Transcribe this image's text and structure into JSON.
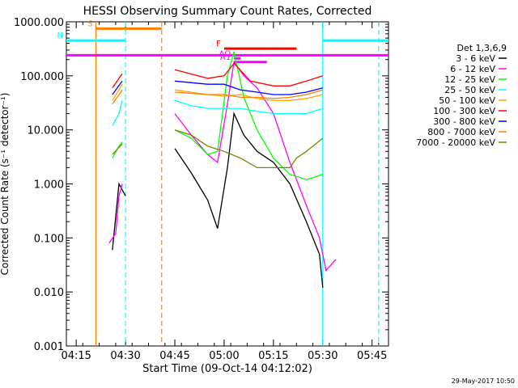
{
  "chart_data": {
    "type": "line",
    "title": "HESSI Observing Summary Count Rates, Corrected",
    "xlabel": "Start Time (09-Oct-14 04:12:02)",
    "ylabel": "Corrected Count Rate (s⁻¹ detector⁻¹)",
    "yscale": "log",
    "ylim": [
      0.001,
      1000
    ],
    "xlim_minutes": [
      "04:12",
      "05:50"
    ],
    "x_ticks": [
      "04:15",
      "04:30",
      "04:45",
      "05:00",
      "05:15",
      "05:30",
      "05:45"
    ],
    "y_ticks": [
      "1000.000",
      "100.000",
      "10.000",
      "1.000",
      "0.100",
      "0.010",
      "0.001"
    ],
    "legend_title": "Det 1,3,6,9",
    "legend_position": "right",
    "series": [
      {
        "name": "3 - 6 keV",
        "color": "#000000",
        "points": [
          [
            "04:26",
            0.06
          ],
          [
            "04:28",
            1.0
          ],
          [
            "04:30",
            0.6
          ],
          [
            "04:45",
            4.5
          ],
          [
            "04:50",
            1.6
          ],
          [
            "04:55",
            0.5
          ],
          [
            "04:58",
            0.15
          ],
          [
            "05:01",
            2.0
          ],
          [
            "05:03",
            20
          ],
          [
            "05:06",
            8.0
          ],
          [
            "05:10",
            4.0
          ],
          [
            "05:15",
            2.5
          ],
          [
            "05:20",
            1.0
          ],
          [
            "05:25",
            0.2
          ],
          [
            "05:29",
            0.05
          ],
          [
            "05:30",
            0.012
          ]
        ]
      },
      {
        "name": "6 - 12 keV",
        "color": "#ff00ff",
        "points": [
          [
            "04:25",
            0.08
          ],
          [
            "04:27",
            0.12
          ],
          [
            "04:28",
            0.6
          ],
          [
            "04:29",
            1.0
          ],
          [
            "04:45",
            20
          ],
          [
            "04:50",
            8.0
          ],
          [
            "04:55",
            3.5
          ],
          [
            "04:58",
            2.5
          ],
          [
            "05:01",
            30
          ],
          [
            "05:03",
            180
          ],
          [
            "05:06",
            100
          ],
          [
            "05:10",
            60
          ],
          [
            "05:15",
            20
          ],
          [
            "05:20",
            2.5
          ],
          [
            "05:25",
            0.4
          ],
          [
            "05:29",
            0.1
          ],
          [
            "05:31",
            0.025
          ],
          [
            "05:34",
            0.04
          ]
        ]
      },
      {
        "name": "12 - 25 keV",
        "color": "#00ff00",
        "points": [
          [
            "04:26",
            3.0
          ],
          [
            "04:28",
            5.0
          ],
          [
            "04:29",
            6.0
          ],
          [
            "04:45",
            10
          ],
          [
            "04:50",
            7.0
          ],
          [
            "04:55",
            3.5
          ],
          [
            "04:58",
            4.0
          ],
          [
            "05:01",
            100
          ],
          [
            "05:03",
            280
          ],
          [
            "05:06",
            40
          ],
          [
            "05:10",
            10
          ],
          [
            "05:15",
            3.0
          ],
          [
            "05:20",
            1.5
          ],
          [
            "05:25",
            1.2
          ],
          [
            "05:30",
            1.5
          ]
        ]
      },
      {
        "name": "25 - 50 keV",
        "color": "#00ffff",
        "points": [
          [
            "04:26",
            12
          ],
          [
            "04:28",
            20
          ],
          [
            "04:29",
            35
          ],
          [
            "04:45",
            35
          ],
          [
            "04:50",
            28
          ],
          [
            "04:55",
            25
          ],
          [
            "05:00",
            25
          ],
          [
            "05:05",
            25
          ],
          [
            "05:10",
            22
          ],
          [
            "05:15",
            20
          ],
          [
            "05:20",
            20
          ],
          [
            "05:25",
            20
          ],
          [
            "05:30",
            25
          ]
        ]
      },
      {
        "name": "50 - 100 keV",
        "color": "#ffa500",
        "points": [
          [
            "04:26",
            35
          ],
          [
            "04:29",
            70
          ],
          [
            "04:45",
            55
          ],
          [
            "04:55",
            45
          ],
          [
            "05:00",
            42
          ],
          [
            "05:05",
            45
          ],
          [
            "05:10",
            38
          ],
          [
            "05:15",
            35
          ],
          [
            "05:20",
            35
          ],
          [
            "05:25",
            38
          ],
          [
            "05:30",
            45
          ]
        ]
      },
      {
        "name": "100 - 300 keV",
        "color": "#ff0000",
        "points": [
          [
            "04:26",
            60
          ],
          [
            "04:29",
            110
          ],
          [
            "04:45",
            130
          ],
          [
            "04:55",
            90
          ],
          [
            "05:00",
            100
          ],
          [
            "05:03",
            170
          ],
          [
            "05:08",
            80
          ],
          [
            "05:15",
            65
          ],
          [
            "05:20",
            65
          ],
          [
            "05:25",
            80
          ],
          [
            "05:30",
            100
          ]
        ]
      },
      {
        "name": "300 - 800 keV",
        "color": "#0000ff",
        "points": [
          [
            "04:26",
            45
          ],
          [
            "04:29",
            80
          ],
          [
            "04:45",
            80
          ],
          [
            "04:55",
            70
          ],
          [
            "05:00",
            70
          ],
          [
            "05:05",
            55
          ],
          [
            "05:10",
            50
          ],
          [
            "05:15",
            45
          ],
          [
            "05:20",
            45
          ],
          [
            "05:25",
            50
          ],
          [
            "05:30",
            60
          ]
        ]
      },
      {
        "name": "800 - 7000 keV",
        "color": "#ff8000",
        "points": [
          [
            "04:26",
            30
          ],
          [
            "04:29",
            55
          ],
          [
            "04:45",
            50
          ],
          [
            "04:55",
            45
          ],
          [
            "05:00",
            45
          ],
          [
            "05:05",
            40
          ],
          [
            "05:10",
            40
          ],
          [
            "05:15",
            38
          ],
          [
            "05:20",
            40
          ],
          [
            "05:25",
            45
          ],
          [
            "05:30",
            55
          ]
        ]
      },
      {
        "name": "7000 - 20000 keV",
        "color": "#808000",
        "points": [
          [
            "04:26",
            3.5
          ],
          [
            "04:29",
            5.5
          ],
          [
            "04:45",
            10
          ],
          [
            "04:50",
            8.0
          ],
          [
            "04:55",
            5.0
          ],
          [
            "05:00",
            4.0
          ],
          [
            "05:05",
            3.0
          ],
          [
            "05:10",
            2.0
          ],
          [
            "05:20",
            2.0
          ],
          [
            "05:22",
            3.0
          ],
          [
            "05:25",
            4.0
          ],
          [
            "05:30",
            7.0
          ]
        ]
      }
    ],
    "flag_bars": [
      {
        "label": "S",
        "color": "#ff8000",
        "start": "04:21",
        "end": "04:41",
        "y": 750
      },
      {
        "label": "N",
        "color": "#00ffff",
        "start": "04:12",
        "end": "04:30",
        "y": 450
      },
      {
        "label": "",
        "color": "#00ffff",
        "start": "05:30",
        "end": "05:50",
        "y": 450
      },
      {
        "label": "F",
        "color": "#ff0000",
        "start": "05:00",
        "end": "05:22",
        "y": 320
      },
      {
        "label": "",
        "color": "#ff00ff",
        "start": "04:12",
        "end": "05:50",
        "y": 240
      },
      {
        "label": "AQ",
        "color": "#ff00ff",
        "start": "05:03",
        "end": "05:05",
        "y": 210
      },
      {
        "label": "A1",
        "color": "#ff00ff",
        "start": "05:03",
        "end": "05:13",
        "y": 180
      }
    ],
    "vertical_lines": [
      {
        "time": "04:21",
        "color": "#ff8000",
        "style": "solid"
      },
      {
        "time": "04:41",
        "color": "#ff8000",
        "style": "dashed"
      },
      {
        "time": "04:30",
        "color": "#00ffff",
        "style": "dashed"
      },
      {
        "time": "05:30",
        "color": "#00ffff",
        "style": "solid"
      },
      {
        "time": "05:47",
        "color": "#00ffff",
        "style": "dashed"
      }
    ]
  },
  "footer_date": "29-May-2017 10:50"
}
